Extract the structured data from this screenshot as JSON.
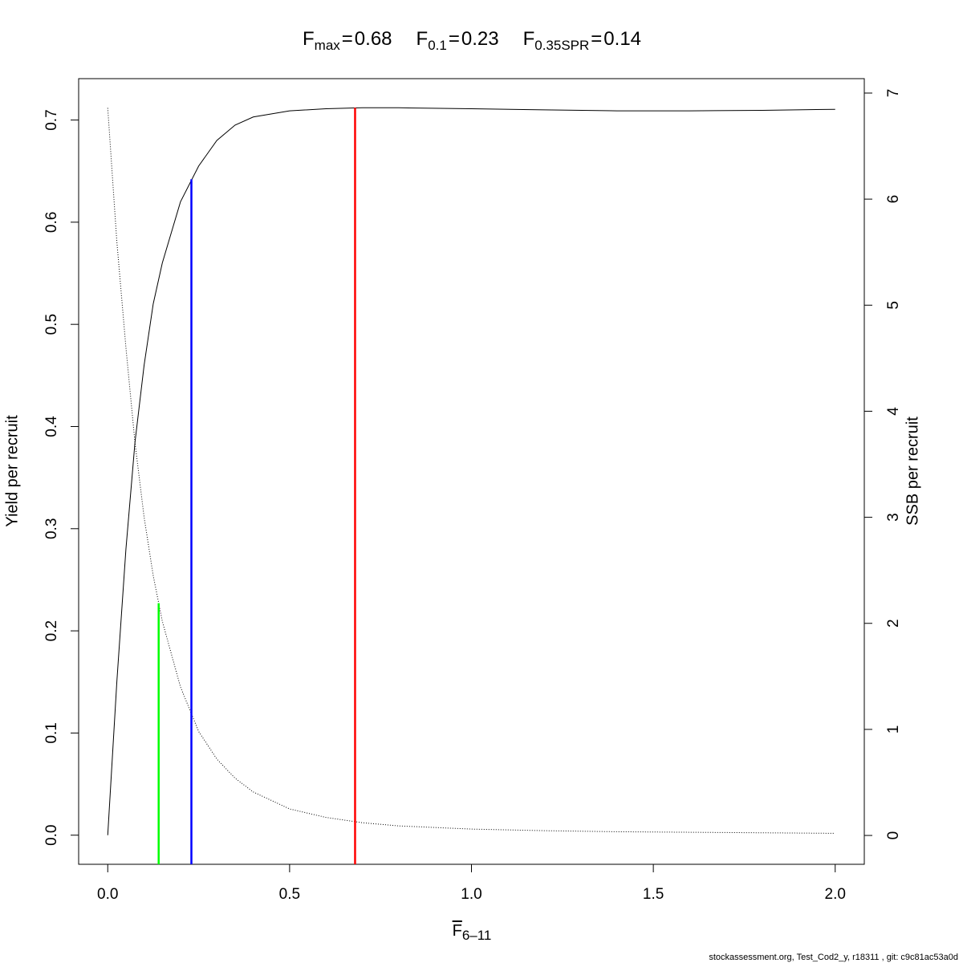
{
  "chart_data": {
    "type": "line",
    "title_parts": [
      {
        "label": "F",
        "subscript": "max",
        "separator": "=",
        "value": 0.68
      },
      {
        "label": "F",
        "subscript": "0.1",
        "separator": "=",
        "value": 0.23
      },
      {
        "label": "F",
        "subscript": "0.35SPR",
        "separator": "=",
        "value": 0.14
      }
    ],
    "reference_lines": [
      {
        "x": 0.68,
        "top": 0.712,
        "axis": "y",
        "color": "#ff0000"
      },
      {
        "x": 0.23,
        "top": 0.642,
        "axis": "y",
        "color": "#0000ff"
      },
      {
        "x": 0.14,
        "top": 2.19,
        "axis": "y2",
        "color": "#00ff00"
      }
    ],
    "x_label": {
      "text": "F",
      "subscript": "6–11"
    },
    "y_label": "Yield per recruit",
    "y2_label": "SSB per recruit",
    "footer": "stockassessment.org, Test_Cod2_y, r18311 , git: c9c81ac53a0d",
    "x": [
      0,
      0.025,
      0.05,
      0.075,
      0.1,
      0.125,
      0.15,
      0.2,
      0.25,
      0.3,
      0.35,
      0.4,
      0.5,
      0.6,
      0.7,
      0.8,
      1.0,
      1.2,
      1.4,
      1.6,
      1.8,
      2.0
    ],
    "series": [
      {
        "name": "Yield per recruit",
        "color": "#000000",
        "dash": "solid",
        "values": [
          0,
          0.15,
          0.28,
          0.385,
          0.46,
          0.52,
          0.56,
          0.62,
          0.655,
          0.68,
          0.695,
          0.703,
          0.709,
          0.711,
          0.712,
          0.712,
          0.711,
          0.71,
          0.709,
          0.709,
          0.7095,
          0.7105
        ]
      },
      {
        "name": "SSB per recruit",
        "color": "#000000",
        "dash": "dotted",
        "axis": "y2",
        "values": [
          6.86,
          5.6,
          4.6,
          3.7,
          3.0,
          2.45,
          2.02,
          1.4,
          0.98,
          0.72,
          0.54,
          0.41,
          0.25,
          0.17,
          0.12,
          0.09,
          0.06,
          0.045,
          0.035,
          0.03,
          0.025,
          0.02
        ]
      }
    ],
    "xlim": [
      -0.08,
      2.08
    ],
    "xticks": [
      {
        "value": 0,
        "label": "0.0"
      },
      0.5,
      {
        "value": 1,
        "label": "1.0"
      },
      1.5,
      {
        "value": 2,
        "label": "2.0"
      }
    ],
    "ylim": [
      -0.0285,
      0.7405
    ],
    "yticks": [
      {
        "value": 0,
        "label": "0.0"
      },
      0.1,
      0.2,
      0.3,
      0.4,
      0.5,
      0.6,
      0.7
    ],
    "y2lim": [
      -0.272,
      7.136
    ],
    "y2ticks": [
      0,
      1,
      2,
      3,
      4,
      5,
      6,
      7
    ]
  }
}
